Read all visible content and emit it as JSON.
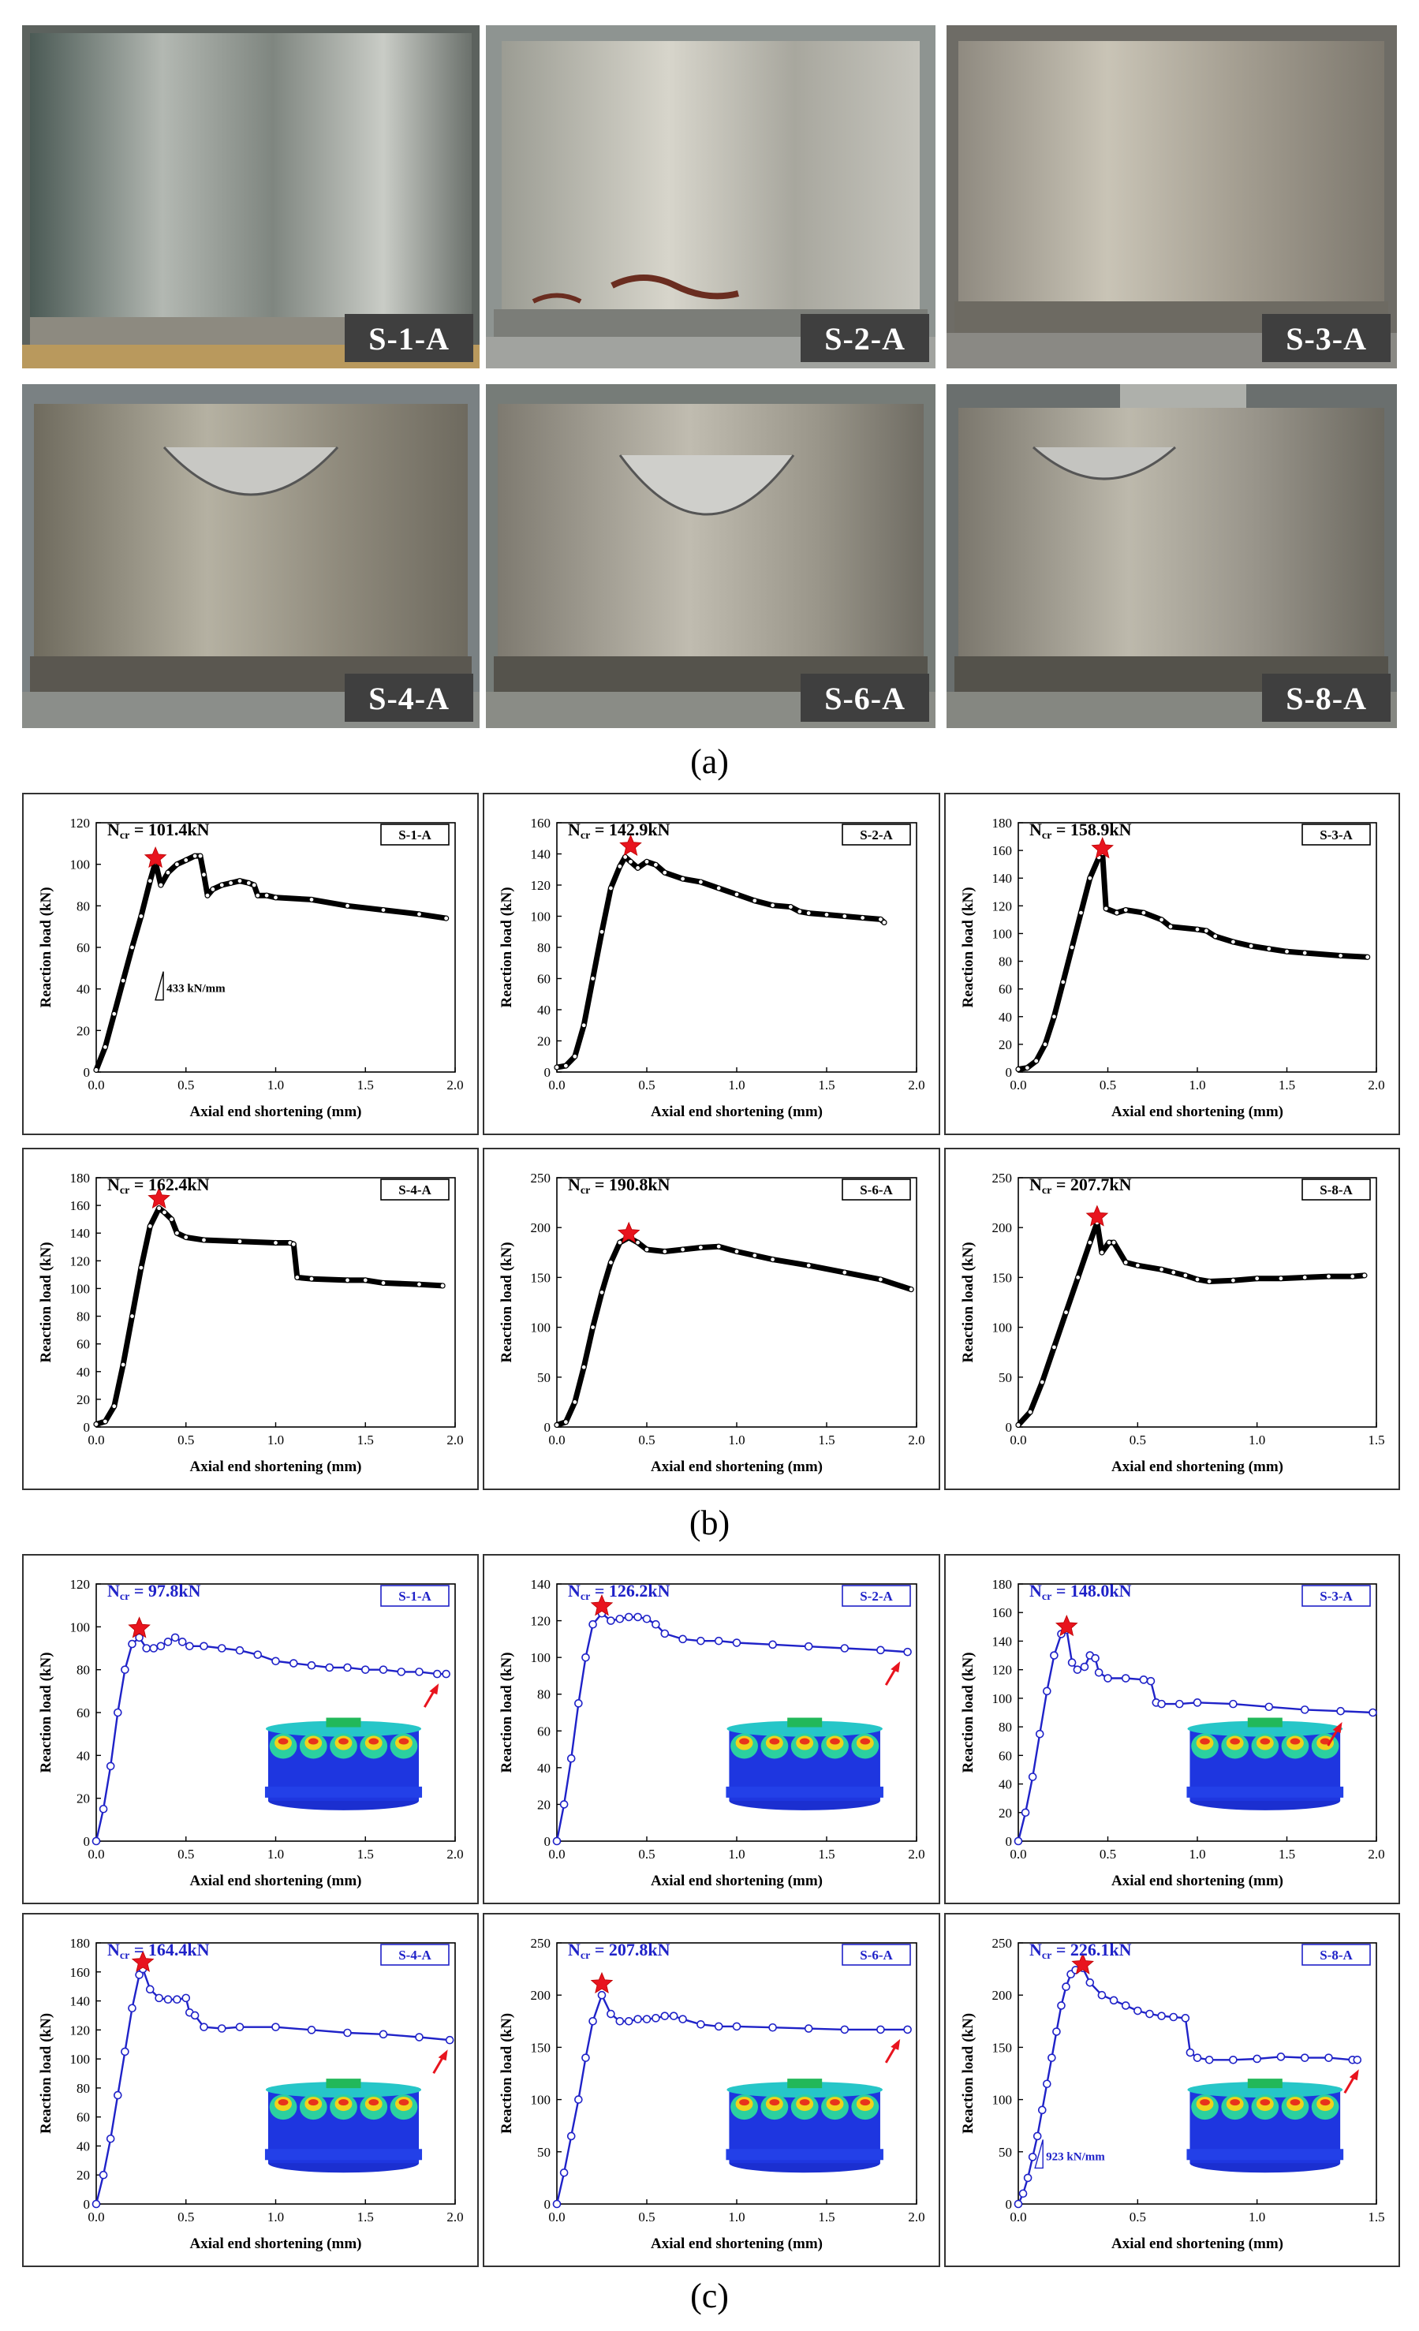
{
  "photos": [
    {
      "id": "S-1-A",
      "label": "S-1-A"
    },
    {
      "id": "S-2-A",
      "label": "S-2-A"
    },
    {
      "id": "S-3-A",
      "label": "S-3-A"
    },
    {
      "id": "S-4-A",
      "label": "S-4-A"
    },
    {
      "id": "S-6-A",
      "label": "S-6-A"
    },
    {
      "id": "S-8-A",
      "label": "S-8-A"
    }
  ],
  "captions": {
    "a": "(a)",
    "b": "(b)",
    "c": "(c)"
  },
  "colors": {
    "experiment": "#000000",
    "simulation": "#1f22c8",
    "star": "#e8141e"
  },
  "chart_data": [
    {
      "group": "b",
      "type": "line",
      "specimen": "S-1-A",
      "ncr_text": "N",
      "ncr_sub": "cr",
      "ncr_value": " = 101.4kN",
      "peak": [
        0.33,
        101.4
      ],
      "xlabel": "Axial end shortening (mm)",
      "ylabel": "Reaction load (kN)",
      "xlim": [
        0,
        2.0
      ],
      "ylim": [
        0,
        120
      ],
      "xticks": [
        0.0,
        0.5,
        1.0,
        1.5,
        2.0
      ],
      "yticks": [
        0,
        20,
        40,
        60,
        80,
        100,
        120
      ],
      "annotation": "433 kN/mm",
      "annotation_pos": [
        0.33,
        40
      ],
      "x": [
        0,
        0.05,
        0.1,
        0.15,
        0.2,
        0.25,
        0.3,
        0.33,
        0.36,
        0.4,
        0.45,
        0.5,
        0.55,
        0.58,
        0.6,
        0.62,
        0.65,
        0.7,
        0.75,
        0.8,
        0.85,
        0.88,
        0.9,
        0.95,
        1.0,
        1.2,
        1.4,
        1.6,
        1.8,
        1.95
      ],
      "y": [
        1,
        12,
        28,
        44,
        60,
        75,
        92,
        101,
        90,
        96,
        100,
        102,
        104,
        104,
        95,
        85,
        88,
        90,
        91,
        92,
        91,
        90,
        85,
        85,
        84,
        83,
        80,
        78,
        76,
        74
      ]
    },
    {
      "group": "b",
      "type": "line",
      "specimen": "S-2-A",
      "ncr_text": "N",
      "ncr_sub": "cr",
      "ncr_value": " = 142.9kN",
      "peak": [
        0.41,
        142.9
      ],
      "xlabel": "Axial end shortening (mm)",
      "ylabel": "Reaction load (kN)",
      "xlim": [
        0,
        2.0
      ],
      "ylim": [
        0,
        160
      ],
      "xticks": [
        0.0,
        0.5,
        1.0,
        1.5,
        2.0
      ],
      "yticks": [
        0,
        20,
        40,
        60,
        80,
        100,
        120,
        140,
        160
      ],
      "x": [
        0,
        0.05,
        0.1,
        0.15,
        0.2,
        0.25,
        0.3,
        0.35,
        0.38,
        0.41,
        0.45,
        0.5,
        0.55,
        0.6,
        0.7,
        0.8,
        0.9,
        1.0,
        1.1,
        1.2,
        1.3,
        1.35,
        1.4,
        1.5,
        1.6,
        1.7,
        1.8,
        1.82
      ],
      "y": [
        3,
        4,
        10,
        30,
        60,
        90,
        118,
        132,
        138,
        135,
        131,
        135,
        133,
        128,
        124,
        122,
        118,
        114,
        110,
        107,
        106,
        103,
        102,
        101,
        100,
        99,
        98,
        96
      ]
    },
    {
      "group": "b",
      "type": "line",
      "specimen": "S-3-A",
      "ncr_text": "N",
      "ncr_sub": "cr",
      "ncr_value": " = 158.9kN",
      "peak": [
        0.47,
        158.9
      ],
      "xlabel": "Axial end shortening (mm)",
      "ylabel": "Reaction load (kN)",
      "xlim": [
        0,
        2.0
      ],
      "ylim": [
        0,
        180
      ],
      "xticks": [
        0.0,
        0.5,
        1.0,
        1.5,
        2.0
      ],
      "yticks": [
        0,
        20,
        40,
        60,
        80,
        100,
        120,
        140,
        160,
        180
      ],
      "x": [
        0,
        0.05,
        0.1,
        0.15,
        0.2,
        0.25,
        0.3,
        0.35,
        0.4,
        0.45,
        0.47,
        0.49,
        0.55,
        0.6,
        0.7,
        0.8,
        0.85,
        1.0,
        1.05,
        1.1,
        1.2,
        1.3,
        1.4,
        1.5,
        1.6,
        1.8,
        1.95
      ],
      "y": [
        2,
        3,
        8,
        20,
        40,
        65,
        90,
        115,
        140,
        155,
        158,
        118,
        115,
        117,
        115,
        110,
        105,
        103,
        102,
        98,
        94,
        91,
        89,
        87,
        86,
        84,
        83
      ]
    },
    {
      "group": "b",
      "type": "line",
      "specimen": "S-4-A",
      "ncr_text": "N",
      "ncr_sub": "cr",
      "ncr_value": " = 162.4kN",
      "peak": [
        0.35,
        162.4
      ],
      "xlabel": "Axial end shortening (mm)",
      "ylabel": "Reaction load (kN)",
      "xlim": [
        0,
        2.0
      ],
      "ylim": [
        0,
        180
      ],
      "xticks": [
        0.0,
        0.5,
        1.0,
        1.5,
        2.0
      ],
      "yticks": [
        0,
        20,
        40,
        60,
        80,
        100,
        120,
        140,
        160,
        180
      ],
      "x": [
        0,
        0.05,
        0.1,
        0.15,
        0.2,
        0.25,
        0.3,
        0.35,
        0.38,
        0.42,
        0.45,
        0.5,
        0.6,
        0.8,
        1.0,
        1.08,
        1.1,
        1.12,
        1.2,
        1.4,
        1.5,
        1.6,
        1.8,
        1.93
      ],
      "y": [
        2,
        4,
        15,
        45,
        80,
        115,
        145,
        158,
        155,
        150,
        140,
        137,
        135,
        134,
        133,
        133,
        132,
        108,
        107,
        106,
        106,
        104,
        103,
        102
      ]
    },
    {
      "group": "b",
      "type": "line",
      "specimen": "S-6-A",
      "ncr_text": "N",
      "ncr_sub": "cr",
      "ncr_value": " = 190.8kN",
      "peak": [
        0.4,
        190.8
      ],
      "xlabel": "Axial end shortening (mm)",
      "ylabel": "Reaction load (kN)",
      "xlim": [
        0,
        2.0
      ],
      "ylim": [
        0,
        250
      ],
      "xticks": [
        0.0,
        0.5,
        1.0,
        1.5,
        2.0
      ],
      "yticks": [
        0,
        50,
        100,
        150,
        200,
        250
      ],
      "x": [
        0,
        0.05,
        0.1,
        0.15,
        0.2,
        0.25,
        0.3,
        0.35,
        0.4,
        0.45,
        0.5,
        0.6,
        0.7,
        0.8,
        0.9,
        1.0,
        1.1,
        1.2,
        1.4,
        1.6,
        1.8,
        1.97
      ],
      "y": [
        2,
        5,
        25,
        60,
        100,
        135,
        165,
        185,
        190,
        185,
        178,
        176,
        178,
        180,
        181,
        176,
        172,
        168,
        162,
        155,
        148,
        138
      ]
    },
    {
      "group": "b",
      "type": "line",
      "specimen": "S-8-A",
      "ncr_text": "N",
      "ncr_sub": "cr",
      "ncr_value": " = 207.7kN",
      "peak": [
        0.33,
        207.7
      ],
      "xlabel": "Axial end shortening (mm)",
      "ylabel": "Reaction load (kN)",
      "xlim": [
        0,
        1.5
      ],
      "ylim": [
        0,
        250
      ],
      "xticks": [
        0.0,
        0.5,
        1.0,
        1.5
      ],
      "yticks": [
        0,
        50,
        100,
        150,
        200,
        250
      ],
      "x": [
        0,
        0.05,
        0.1,
        0.15,
        0.2,
        0.25,
        0.3,
        0.33,
        0.35,
        0.38,
        0.4,
        0.45,
        0.5,
        0.6,
        0.65,
        0.7,
        0.75,
        0.8,
        0.9,
        1.0,
        1.1,
        1.2,
        1.3,
        1.4,
        1.45
      ],
      "y": [
        2,
        15,
        45,
        80,
        115,
        150,
        185,
        205,
        175,
        185,
        185,
        165,
        162,
        158,
        155,
        152,
        148,
        146,
        147,
        149,
        149,
        150,
        151,
        151,
        152
      ]
    },
    {
      "group": "c",
      "type": "line",
      "specimen": "S-1-A",
      "ncr_text": "N",
      "ncr_sub": "cr",
      "ncr_value": " = 97.8kN",
      "peak": [
        0.24,
        97.8
      ],
      "xlabel": "Axial end shortening (mm)",
      "ylabel": "Reaction load (kN)",
      "xlim": [
        0,
        2.0
      ],
      "ylim": [
        0,
        120
      ],
      "xticks": [
        0.0,
        0.5,
        1.0,
        1.5,
        2.0
      ],
      "yticks": [
        0,
        20,
        40,
        60,
        80,
        100,
        120
      ],
      "arrow_at": 1.9,
      "x": [
        0,
        0.04,
        0.08,
        0.12,
        0.16,
        0.2,
        0.24,
        0.28,
        0.32,
        0.36,
        0.4,
        0.44,
        0.48,
        0.52,
        0.6,
        0.7,
        0.8,
        0.9,
        1.0,
        1.1,
        1.2,
        1.3,
        1.4,
        1.5,
        1.6,
        1.7,
        1.8,
        1.9,
        1.95
      ],
      "y": [
        0,
        15,
        35,
        60,
        80,
        92,
        95,
        90,
        90,
        91,
        93,
        95,
        93,
        91,
        91,
        90,
        89,
        87,
        84,
        83,
        82,
        81,
        81,
        80,
        80,
        79,
        79,
        78,
        78
      ]
    },
    {
      "group": "c",
      "type": "line",
      "specimen": "S-2-A",
      "ncr_text": "N",
      "ncr_sub": "cr",
      "ncr_value": " = 126.2kN",
      "peak": [
        0.25,
        126.2
      ],
      "xlabel": "Axial end shortening (mm)",
      "ylabel": "Reaction load (kN)",
      "xlim": [
        0,
        2.0
      ],
      "ylim": [
        0,
        140
      ],
      "xticks": [
        0.0,
        0.5,
        1.0,
        1.5,
        2.0
      ],
      "yticks": [
        0,
        20,
        40,
        60,
        80,
        100,
        120,
        140
      ],
      "arrow_at": 1.9,
      "x": [
        0,
        0.04,
        0.08,
        0.12,
        0.16,
        0.2,
        0.25,
        0.3,
        0.35,
        0.4,
        0.45,
        0.5,
        0.55,
        0.6,
        0.7,
        0.8,
        0.9,
        1.0,
        1.2,
        1.4,
        1.6,
        1.8,
        1.95
      ],
      "y": [
        0,
        20,
        45,
        75,
        100,
        118,
        124,
        120,
        121,
        122,
        122,
        121,
        118,
        113,
        110,
        109,
        109,
        108,
        107,
        106,
        105,
        104,
        103
      ]
    },
    {
      "group": "c",
      "type": "line",
      "specimen": "S-3-A",
      "ncr_text": "N",
      "ncr_sub": "cr",
      "ncr_value": " = 148.0kN",
      "peak": [
        0.27,
        148.0
      ],
      "xlabel": "Axial end shortening (mm)",
      "ylabel": "Reaction load (kN)",
      "xlim": [
        0,
        2.0
      ],
      "ylim": [
        0,
        180
      ],
      "xticks": [
        0.0,
        0.5,
        1.0,
        1.5,
        2.0
      ],
      "yticks": [
        0,
        20,
        40,
        60,
        80,
        100,
        120,
        140,
        160,
        180
      ],
      "arrow_at": 1.8,
      "x": [
        0,
        0.04,
        0.08,
        0.12,
        0.16,
        0.2,
        0.24,
        0.27,
        0.3,
        0.33,
        0.37,
        0.4,
        0.43,
        0.45,
        0.5,
        0.6,
        0.7,
        0.74,
        0.77,
        0.8,
        0.9,
        1.0,
        1.2,
        1.4,
        1.6,
        1.8,
        1.98
      ],
      "y": [
        0,
        20,
        45,
        75,
        105,
        130,
        145,
        148,
        125,
        120,
        122,
        130,
        128,
        118,
        114,
        114,
        113,
        112,
        97,
        96,
        96,
        97,
        96,
        94,
        92,
        91,
        90
      ]
    },
    {
      "group": "c",
      "type": "line",
      "specimen": "S-4-A",
      "ncr_text": "N",
      "ncr_sub": "cr",
      "ncr_value": " = 164.4kN",
      "peak": [
        0.26,
        164.4
      ],
      "xlabel": "Axial end shortening (mm)",
      "ylabel": "Reaction load (kN)",
      "xlim": [
        0,
        2.0
      ],
      "ylim": [
        0,
        180
      ],
      "xticks": [
        0.0,
        0.5,
        1.0,
        1.5,
        2.0
      ],
      "yticks": [
        0,
        20,
        40,
        60,
        80,
        100,
        120,
        140,
        160,
        180
      ],
      "arrow_at": 1.95,
      "x": [
        0,
        0.04,
        0.08,
        0.12,
        0.16,
        0.2,
        0.24,
        0.26,
        0.3,
        0.35,
        0.4,
        0.45,
        0.5,
        0.52,
        0.55,
        0.6,
        0.7,
        0.8,
        1.0,
        1.2,
        1.4,
        1.6,
        1.8,
        1.97
      ],
      "y": [
        0,
        20,
        45,
        75,
        105,
        135,
        158,
        162,
        148,
        142,
        141,
        141,
        142,
        132,
        130,
        122,
        121,
        122,
        122,
        120,
        118,
        117,
        115,
        113
      ]
    },
    {
      "group": "c",
      "type": "line",
      "specimen": "S-6-A",
      "ncr_text": "N",
      "ncr_sub": "cr",
      "ncr_value": " = 207.8kN",
      "peak": [
        0.25,
        207.8
      ],
      "xlabel": "Axial end shortening (mm)",
      "ylabel": "Reaction load (kN)",
      "xlim": [
        0,
        2.0
      ],
      "ylim": [
        0,
        250
      ],
      "xticks": [
        0.0,
        0.5,
        1.0,
        1.5,
        2.0
      ],
      "yticks": [
        0,
        50,
        100,
        150,
        200,
        250
      ],
      "arrow_at": 1.9,
      "x": [
        0,
        0.04,
        0.08,
        0.12,
        0.16,
        0.2,
        0.25,
        0.3,
        0.35,
        0.4,
        0.45,
        0.5,
        0.55,
        0.6,
        0.65,
        0.7,
        0.8,
        0.9,
        1.0,
        1.2,
        1.4,
        1.6,
        1.8,
        1.95
      ],
      "y": [
        0,
        30,
        65,
        100,
        140,
        175,
        200,
        182,
        175,
        175,
        177,
        177,
        178,
        180,
        180,
        177,
        172,
        170,
        170,
        169,
        168,
        167,
        167,
        167
      ]
    },
    {
      "group": "c",
      "type": "line",
      "specimen": "S-8-A",
      "ncr_text": "N",
      "ncr_sub": "cr",
      "ncr_value": " = 226.1kN",
      "peak": [
        0.27,
        226.1
      ],
      "xlabel": "Axial end shortening (mm)",
      "ylabel": "Reaction load (kN)",
      "xlim": [
        0,
        1.5
      ],
      "ylim": [
        0,
        250
      ],
      "xticks": [
        0.0,
        0.5,
        1.0,
        1.5
      ],
      "yticks": [
        0,
        50,
        100,
        150,
        200,
        250
      ],
      "annotation": "923 kN/mm",
      "annotation_pos": [
        0.07,
        45
      ],
      "arrow_at": 1.42,
      "x": [
        0,
        0.02,
        0.04,
        0.06,
        0.08,
        0.1,
        0.12,
        0.14,
        0.16,
        0.18,
        0.2,
        0.22,
        0.24,
        0.27,
        0.3,
        0.35,
        0.4,
        0.45,
        0.5,
        0.55,
        0.6,
        0.65,
        0.7,
        0.72,
        0.75,
        0.8,
        0.9,
        1.0,
        1.1,
        1.2,
        1.3,
        1.4,
        1.42
      ],
      "y": [
        0,
        10,
        25,
        45,
        65,
        90,
        115,
        140,
        165,
        190,
        208,
        220,
        224,
        226,
        212,
        200,
        195,
        190,
        185,
        182,
        180,
        179,
        178,
        145,
        140,
        138,
        138,
        139,
        141,
        140,
        140,
        138,
        138
      ]
    }
  ]
}
